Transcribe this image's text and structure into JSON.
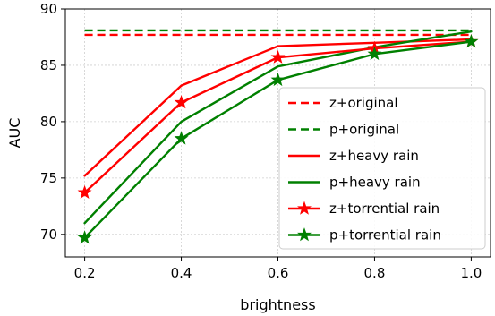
{
  "chart_data": {
    "type": "line",
    "title": "",
    "xlabel": "brightness",
    "ylabel": "AUC",
    "x": [
      0.2,
      0.4,
      0.6,
      0.8,
      1.0
    ],
    "xlim": [
      0.16,
      1.04
    ],
    "ylim": [
      68,
      90
    ],
    "xticks": [
      "0.2",
      "0.4",
      "0.6",
      "0.8",
      "1.0"
    ],
    "yticks": [
      "70",
      "75",
      "80",
      "85",
      "90"
    ],
    "grid": true,
    "legend_position": "lower-right",
    "colors": {
      "z": "#ff0000",
      "p": "#008000"
    },
    "series": [
      {
        "name": "z+original",
        "values": [
          87.7,
          87.7,
          87.7,
          87.7,
          87.7
        ],
        "color": "#ff0000",
        "style": "dashed",
        "marker": "none"
      },
      {
        "name": "p+original",
        "values": [
          88.1,
          88.1,
          88.1,
          88.1,
          88.1
        ],
        "color": "#008000",
        "style": "dashed",
        "marker": "none"
      },
      {
        "name": "z+heavy rain",
        "values": [
          75.2,
          83.2,
          86.7,
          87.0,
          87.3
        ],
        "color": "#ff0000",
        "style": "solid",
        "marker": "none"
      },
      {
        "name": "p+heavy rain",
        "values": [
          71.0,
          80.0,
          84.9,
          86.6,
          88.0
        ],
        "color": "#008000",
        "style": "solid",
        "marker": "none"
      },
      {
        "name": "z+torrential rain",
        "values": [
          73.7,
          81.7,
          85.7,
          86.5,
          87.1
        ],
        "color": "#ff0000",
        "style": "solid",
        "marker": "star"
      },
      {
        "name": "p+torrential rain",
        "values": [
          69.7,
          78.5,
          83.7,
          86.0,
          87.1
        ],
        "color": "#008000",
        "style": "solid",
        "marker": "star"
      }
    ]
  }
}
